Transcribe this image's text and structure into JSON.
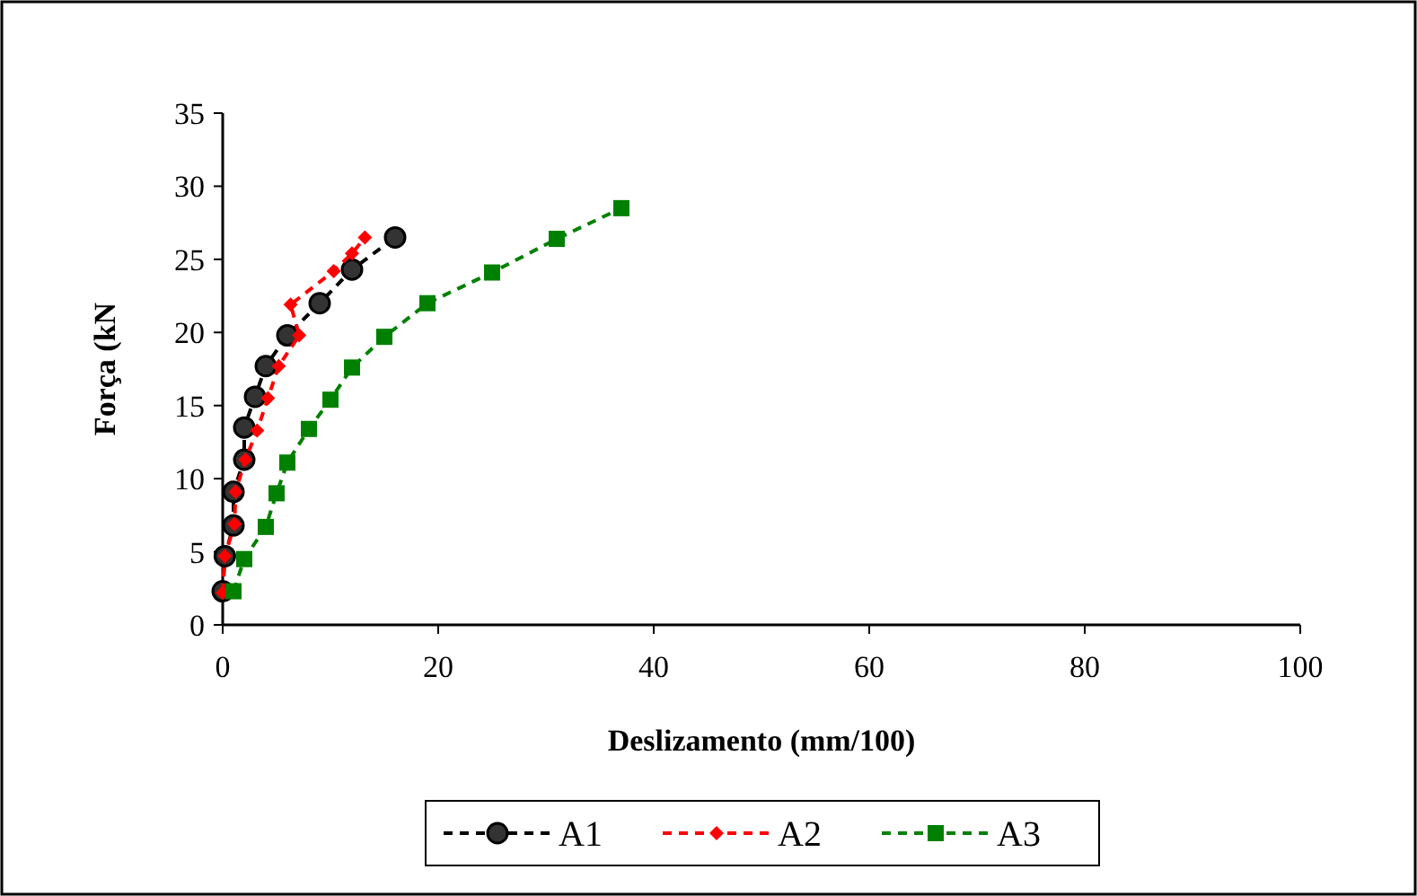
{
  "chart_data": {
    "type": "line",
    "xlabel": "Deslizamento (mm/100)",
    "ylabel": "Força (kN",
    "xlim": [
      0,
      100
    ],
    "xticks": [
      0,
      20,
      40,
      60,
      80,
      100
    ],
    "ylim": [
      0,
      35
    ],
    "yticks": [
      0,
      5,
      10,
      15,
      20,
      25,
      30,
      35
    ],
    "grid": false,
    "legend": "bottom",
    "line_style": "dashed",
    "series": [
      {
        "name": "A1",
        "color": "#000000",
        "marker": "circle",
        "x": [
          0,
          0.2,
          1,
          1,
          2,
          2,
          3,
          4,
          6,
          9,
          12,
          16
        ],
        "values": [
          2.3,
          4.7,
          6.8,
          9.1,
          11.3,
          13.5,
          15.6,
          17.7,
          19.8,
          22.0,
          24.3,
          26.5
        ]
      },
      {
        "name": "A2",
        "color": "#ff0000",
        "marker": "diamond",
        "x": [
          0,
          0.2,
          1.1,
          1.2,
          2.1,
          3.2,
          4.2,
          5.2,
          7.1,
          6.3,
          10.3,
          12,
          13.2
        ],
        "values": [
          2.2,
          4.7,
          6.9,
          9.1,
          11.3,
          13.3,
          15.5,
          17.7,
          19.8,
          21.9,
          24.2,
          25.4,
          26.5
        ]
      },
      {
        "name": "A3",
        "color": "#008000",
        "marker": "square",
        "x": [
          1,
          2,
          4,
          5,
          6,
          8,
          10,
          12,
          15,
          19,
          25,
          31,
          37
        ],
        "values": [
          2.3,
          4.5,
          6.7,
          9.0,
          11.1,
          13.4,
          15.4,
          17.6,
          19.7,
          22.0,
          24.1,
          26.4,
          28.5
        ]
      }
    ]
  }
}
